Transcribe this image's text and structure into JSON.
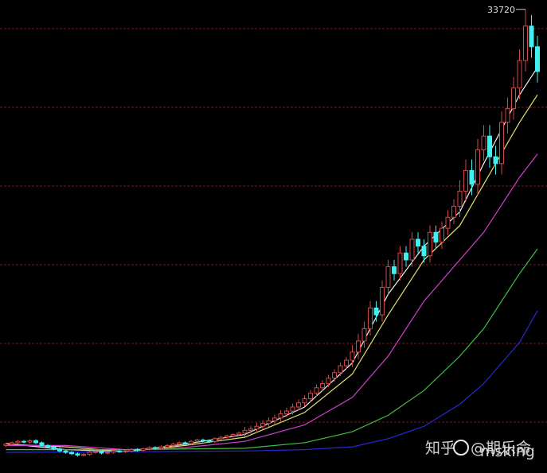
{
  "chart_data": {
    "type": "candlestick",
    "ylim": [
      0,
      34400
    ],
    "gridlines": [
      3700,
      9424,
      15147,
      20871,
      26595,
      32319
    ],
    "open": [
      2000,
      2100,
      2200,
      2300,
      2250,
      2350,
      2200,
      2000,
      1900,
      1750,
      1600,
      1500,
      1400,
      1300,
      1350,
      1500,
      1550,
      1450,
      1500,
      1600,
      1550,
      1600,
      1700,
      1650,
      1750,
      1850,
      1800,
      1900,
      2000,
      2100,
      2200,
      2150,
      2300,
      2400,
      2350,
      2300,
      2500,
      2600,
      2700,
      2800,
      2900,
      3100,
      3200,
      3400,
      3600,
      3800,
      4000,
      4300,
      4500,
      4800,
      5100,
      5400,
      5800,
      6200,
      6500,
      6900,
      7300,
      7800,
      8200,
      8800,
      9600,
      10500,
      12000,
      11500,
      13500,
      15000,
      14500,
      16000,
      15500,
      17000,
      16500,
      15800,
      17500,
      16800,
      17800,
      18600,
      19400,
      20500,
      22000,
      21000,
      23500,
      24500,
      23000,
      22500,
      25500,
      26500,
      28000,
      30000,
      32500,
      31000
    ],
    "high": [
      2200,
      2300,
      2400,
      2400,
      2450,
      2450,
      2300,
      2100,
      2000,
      1850,
      1700,
      1600,
      1500,
      1450,
      1600,
      1650,
      1650,
      1600,
      1700,
      1700,
      1700,
      1800,
      1800,
      1850,
      1950,
      1950,
      2000,
      2100,
      2200,
      2300,
      2300,
      2400,
      2500,
      2500,
      2450,
      2600,
      2700,
      2800,
      2900,
      3000,
      3350,
      3450,
      3650,
      3850,
      4050,
      4250,
      4550,
      4750,
      5050,
      5350,
      5650,
      6050,
      6450,
      6750,
      7150,
      7550,
      8050,
      8450,
      9300,
      10100,
      11000,
      12500,
      12500,
      14000,
      15500,
      15500,
      16500,
      16500,
      17500,
      17500,
      17000,
      18000,
      18000,
      18300,
      19100,
      19900,
      21300,
      22800,
      22800,
      24300,
      25300,
      25300,
      23800,
      26300,
      27300,
      28800,
      30800,
      33720,
      33300,
      31800
    ],
    "low": [
      1900,
      2000,
      2100,
      2150,
      2150,
      2100,
      1900,
      1800,
      1650,
      1500,
      1400,
      1300,
      1200,
      1200,
      1250,
      1400,
      1350,
      1350,
      1400,
      1450,
      1450,
      1500,
      1550,
      1550,
      1650,
      1700,
      1700,
      1800,
      1900,
      2000,
      2050,
      2050,
      2200,
      2250,
      2200,
      2200,
      2400,
      2500,
      2600,
      2700,
      2650,
      2850,
      2950,
      3150,
      3350,
      3550,
      3750,
      4050,
      4250,
      4550,
      4850,
      5150,
      5550,
      5950,
      6250,
      6650,
      7050,
      7550,
      7700,
      8300,
      9100,
      10000,
      11000,
      11000,
      13000,
      14000,
      14000,
      15000,
      15000,
      16000,
      15300,
      15300,
      16300,
      16300,
      17300,
      18100,
      18600,
      19700,
      20200,
      20200,
      22700,
      22200,
      21700,
      21700,
      24700,
      25700,
      27200,
      29200,
      30200,
      28400
    ],
    "close": [
      2100,
      2200,
      2300,
      2250,
      2350,
      2200,
      2000,
      1900,
      1750,
      1600,
      1500,
      1400,
      1300,
      1350,
      1500,
      1550,
      1450,
      1500,
      1600,
      1550,
      1600,
      1700,
      1650,
      1750,
      1850,
      1800,
      1900,
      2000,
      2100,
      2200,
      2150,
      2300,
      2400,
      2350,
      2300,
      2500,
      2600,
      2700,
      2800,
      2900,
      3100,
      3200,
      3400,
      3600,
      3800,
      4000,
      4300,
      4500,
      4800,
      5100,
      5400,
      5800,
      6200,
      6500,
      6900,
      7300,
      7800,
      8200,
      8800,
      9600,
      10500,
      12000,
      11500,
      13500,
      15000,
      14500,
      16000,
      15500,
      17000,
      16500,
      15800,
      17500,
      16800,
      17800,
      18600,
      19400,
      20500,
      22000,
      21000,
      23500,
      24500,
      23000,
      22500,
      25500,
      26500,
      28000,
      30000,
      32500,
      31000,
      29200
    ],
    "up_color": "#d04848",
    "down_color": "#40f0f0",
    "grid_color": "#7a1616",
    "lines": [
      {
        "color": "#f0f0f0",
        "x": [
          0,
          10,
          20,
          30,
          40,
          50,
          58,
          64,
          70,
          76,
          80,
          86,
          89
        ],
        "values": [
          2150,
          1700,
          1550,
          2100,
          2800,
          4800,
          8000,
          13000,
          16500,
          19000,
          22500,
          27500,
          29500
        ]
      },
      {
        "color": "#e8e070",
        "x": [
          0,
          10,
          20,
          30,
          40,
          50,
          58,
          64,
          70,
          76,
          80,
          86,
          89
        ],
        "values": [
          2100,
          1900,
          1550,
          2000,
          2600,
          4400,
          7200,
          11500,
          15500,
          18000,
          21000,
          25500,
          27500
        ]
      },
      {
        "color": "#d040d0",
        "x": [
          0,
          10,
          20,
          30,
          40,
          50,
          58,
          64,
          70,
          76,
          80,
          86,
          89
        ],
        "values": [
          2000,
          2000,
          1700,
          1850,
          2300,
          3500,
          5500,
          8500,
          12500,
          15500,
          17500,
          21500,
          23200
        ]
      },
      {
        "color": "#40c040",
        "x": [
          0,
          20,
          40,
          50,
          58,
          64,
          70,
          76,
          80,
          86,
          89
        ],
        "values": [
          1700,
          1700,
          1800,
          2200,
          3000,
          4200,
          6000,
          8500,
          10500,
          14500,
          16300
        ]
      },
      {
        "color": "#2828d0",
        "x": [
          0,
          20,
          40,
          50,
          58,
          64,
          70,
          76,
          80,
          86,
          89
        ],
        "values": [
          1500,
          1550,
          1600,
          1700,
          1900,
          2500,
          3400,
          5000,
          6500,
          9500,
          11800
        ]
      }
    ],
    "watermark": {
      "site": "知乎",
      "handle": "@期乐命",
      "user": "msking"
    }
  }
}
